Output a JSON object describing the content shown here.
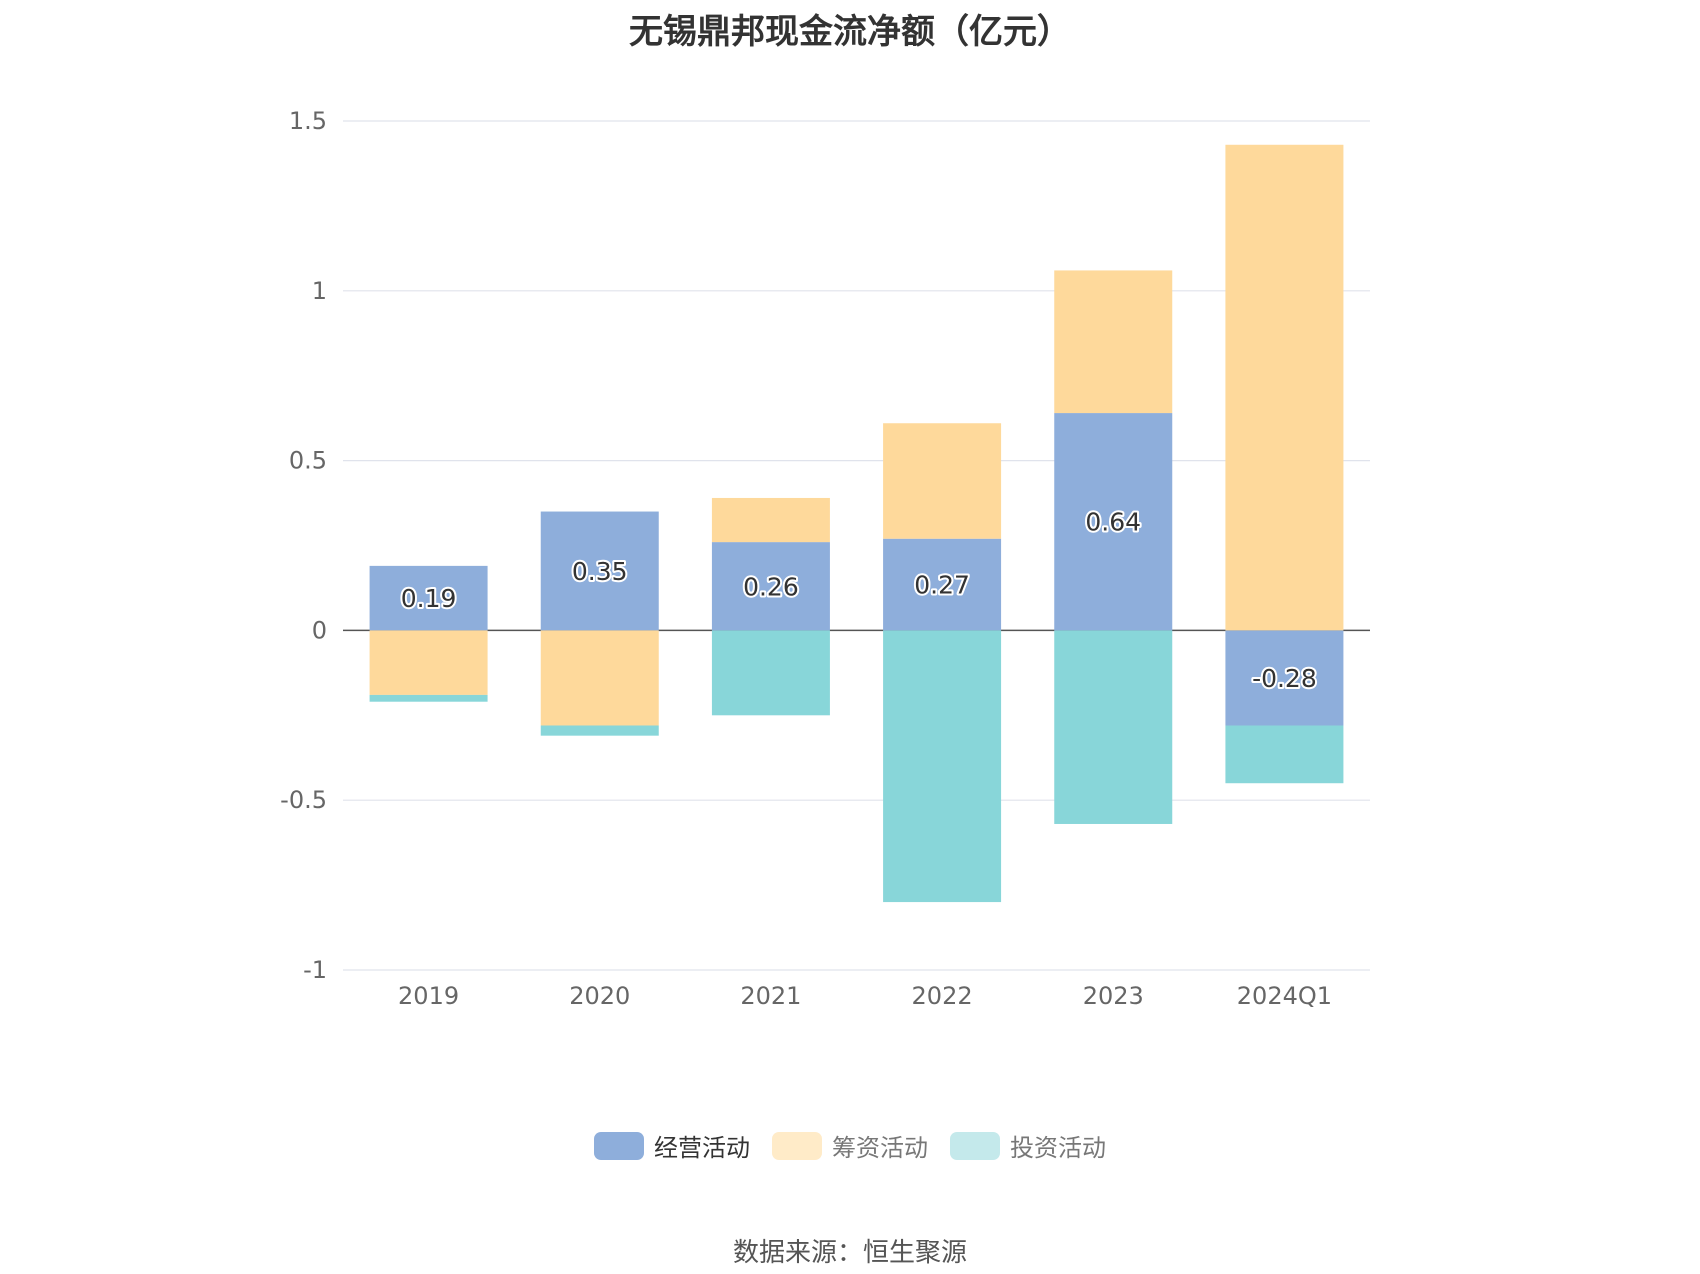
{
  "chart_data": {
    "type": "bar",
    "stacked": true,
    "title": "无锡鼎邦现金流净额（亿元）",
    "categories": [
      "2019",
      "2020",
      "2021",
      "2022",
      "2023",
      "2024Q1"
    ],
    "series": [
      {
        "name": "经营活动",
        "color": "#8eaedb",
        "values": [
          0.19,
          0.35,
          0.26,
          0.27,
          0.64,
          -0.28
        ],
        "labels": [
          "0.19",
          "0.35",
          "0.26",
          "0.27",
          "0.64",
          "-0.28"
        ]
      },
      {
        "name": "筹资活动",
        "color": "#fed99b",
        "values": [
          -0.19,
          -0.28,
          0.13,
          0.34,
          0.42,
          1.43
        ]
      },
      {
        "name": "投资活动",
        "color": "#88d6d9",
        "values": [
          -0.02,
          -0.03,
          -0.25,
          -0.8,
          -0.57,
          -0.17
        ]
      }
    ],
    "yticks": [
      1.5,
      1,
      0.5,
      0,
      -0.5,
      -1
    ],
    "ytick_labels": [
      "1.5",
      "1",
      "0.5",
      "0",
      "-0.5",
      "-1"
    ],
    "ylim": [
      -1,
      1.5
    ],
    "grid": true,
    "legend_position": "bottom",
    "legend_swatch_colors": [
      "#8eaedb",
      "#ffebc8",
      "#c4e9eb"
    ]
  },
  "source_text": "数据来源：恒生聚源"
}
